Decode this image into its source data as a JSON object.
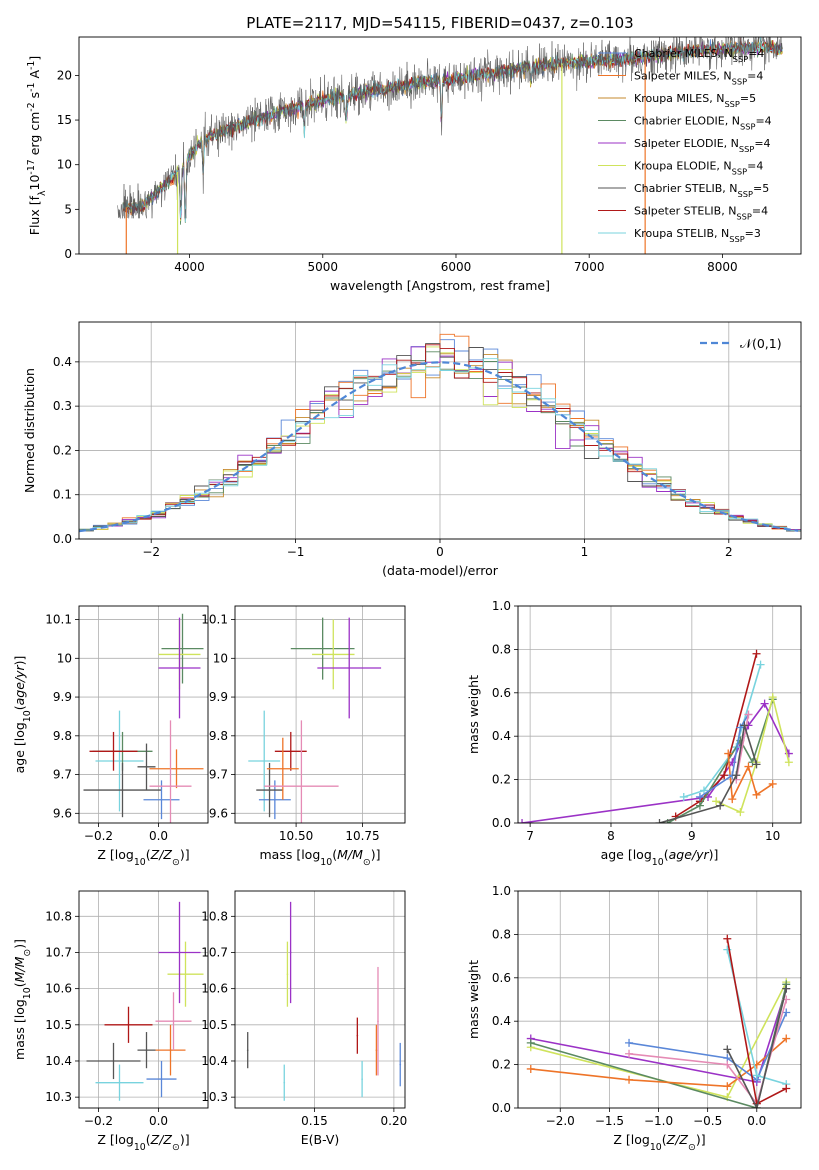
{
  "figure": {
    "title": "PLATE=2117, MJD=54115, FIBERID=0437, z=0.103"
  },
  "colors": {
    "Chabrier MILES": "#5a87d8",
    "Salpeter MILES": "#ee7428",
    "Kroupa MILES": "#c6892c",
    "Chabrier ELODIE": "#5b8a62",
    "Salpeter ELODIE": "#9b32c6",
    "Kroupa ELODIE": "#cfe35c",
    "Chabrier STELIB": "#555555",
    "Salpeter STELIB": "#b01818",
    "Kroupa STELIB": "#78d3de",
    "pink": "#e58bb5",
    "gaussian": "#4f87d6",
    "grid": "#b0b0b0"
  },
  "chart_data": [
    {
      "id": "spectrum",
      "type": "line",
      "xlabel": "wavelength [Angstrom, rest frame]",
      "ylabel": "Flux [f$_\\lambda$10$^{-17}$ erg cm$^{-2}$ s$^{-1}$ A$^{-1}$]",
      "xlim": [
        3170,
        8590
      ],
      "ylim": [
        0,
        24.3
      ],
      "xticks": [
        4000,
        5000,
        6000,
        7000,
        8000
      ],
      "yticks": [
        0,
        5,
        10,
        15,
        20
      ],
      "grid": false,
      "legend_position": "right",
      "legend": [
        {
          "label": "Chabrier MILES, N$_{SSP}$=4",
          "color_key": "Chabrier MILES"
        },
        {
          "label": "Salpeter MILES, N$_{SSP}$=4",
          "color_key": "Salpeter MILES"
        },
        {
          "label": "Kroupa MILES, N$_{SSP}$=5",
          "color_key": "Kroupa MILES"
        },
        {
          "label": "Chabrier ELODIE, N$_{SSP}$=4",
          "color_key": "Chabrier ELODIE"
        },
        {
          "label": "Salpeter ELODIE, N$_{SSP}$=4",
          "color_key": "Salpeter ELODIE"
        },
        {
          "label": "Kroupa ELODIE, N$_{SSP}$=4",
          "color_key": "Kroupa ELODIE"
        },
        {
          "label": "Chabrier STELIB, N$_{SSP}$=5",
          "color_key": "Chabrier STELIB"
        },
        {
          "label": "Salpeter STELIB, N$_{SSP}$=4",
          "color_key": "Salpeter STELIB"
        },
        {
          "label": "Kroupa STELIB, N$_{SSP}$=3",
          "color_key": "Kroupa STELIB"
        }
      ],
      "continuum": {
        "x": [
          3500,
          3650,
          3800,
          3900,
          4000,
          4100,
          4300,
          4500,
          4700,
          4900,
          5100,
          5300,
          5500,
          5700,
          5900,
          6100,
          6300,
          6500,
          6700,
          6900,
          7100,
          7300,
          7500,
          7700,
          7900,
          8100,
          8300,
          8450
        ],
        "y": [
          5.2,
          5.4,
          7.5,
          9.0,
          11.0,
          12.8,
          14.0,
          15.0,
          16.0,
          16.9,
          17.5,
          18.1,
          18.6,
          19.2,
          19.4,
          19.9,
          20.3,
          20.9,
          21.2,
          21.5,
          21.7,
          21.9,
          22.2,
          22.6,
          22.9,
          23.0,
          23.2,
          22.9
        ]
      },
      "noisy_series": "Chabrier STELIB",
      "smooth_series": "Kroupa STELIB",
      "model_cutoffs": [
        {
          "series": "Salpeter MILES",
          "from": 3200,
          "to": 3525
        },
        {
          "series": "Kroupa ELODIE",
          "from": 3200,
          "to": 3910
        },
        {
          "series": "Kroupa ELODIE",
          "from": 6795,
          "to": 8600
        },
        {
          "series": "Salpeter MILES",
          "from": 7420,
          "to": 8600
        }
      ]
    },
    {
      "id": "residuals",
      "type": "step",
      "xlabel": "(data-model)/error",
      "ylabel": "Normed distribution",
      "xlim": [
        -2.5,
        2.5
      ],
      "ylim": [
        0,
        0.49
      ],
      "xticks": [
        -2,
        -1,
        0,
        1,
        2
      ],
      "yticks": [
        0.0,
        0.1,
        0.2,
        0.3,
        0.4
      ],
      "grid": true,
      "legend_position": "top-right",
      "legend": [
        {
          "label": "$\\mathcal{N}(0,1)$",
          "color_key": "gaussian",
          "style": "dashed"
        }
      ],
      "bin_edges_start": -2.5,
      "bin_width": 0.1,
      "bins": 50,
      "series_keys": [
        "Chabrier MILES",
        "Salpeter MILES",
        "Kroupa MILES",
        "Chabrier ELODIE",
        "Salpeter ELODIE",
        "Kroupa ELODIE",
        "Chabrier STELIB",
        "Salpeter STELIB",
        "Kroupa STELIB"
      ]
    },
    {
      "id": "z-age",
      "type": "scatter",
      "xlabel": "Z [log$_{10}$($Z/Z_\\odot$)]",
      "ylabel": "age  [log$_{10}$($age/yr$)]",
      "xlim": [
        -0.265,
        0.165
      ],
      "ylim": [
        9.575,
        10.135
      ],
      "xticks": [
        -0.2,
        0.0
      ],
      "xticklabels": [
        "−0.2",
        "0.0"
      ],
      "yticks": [
        9.6,
        9.7,
        9.8,
        9.9,
        10.0,
        10.1
      ],
      "grid": true,
      "points": [
        {
          "x": -0.13,
          "y": 9.735,
          "xerr": 0.08,
          "yerr": 0.13,
          "color_key": "Kroupa STELIB"
        },
        {
          "x": -0.12,
          "y": 9.76,
          "xerr": 0.1,
          "yerr": 0.05,
          "color_key": "Chabrier ELODIE"
        },
        {
          "x": -0.15,
          "y": 9.76,
          "xerr": 0.08,
          "yerr": 0.05,
          "color_key": "Salpeter STELIB"
        },
        {
          "x": -0.12,
          "y": 9.66,
          "xerr": 0.13,
          "yerr": 0.07,
          "color_key": "Chabrier STELIB"
        },
        {
          "x": 0.01,
          "y": 9.635,
          "xerr": 0.06,
          "yerr": 0.05,
          "color_key": "Chabrier MILES"
        },
        {
          "x": -0.04,
          "y": 9.72,
          "xerr": 0.03,
          "yerr": 0.06,
          "color_key": "Chabrier STELIB"
        },
        {
          "x": 0.06,
          "y": 9.715,
          "xerr": 0.09,
          "yerr": 0.05,
          "color_key": "Salpeter MILES"
        },
        {
          "x": 0.04,
          "y": 9.67,
          "xerr": 0.07,
          "yerr": 0.17,
          "color_key": "pink"
        },
        {
          "x": 0.08,
          "y": 10.025,
          "xerr": 0.07,
          "yerr": 0.09,
          "color_key": "Chabrier ELODIE"
        },
        {
          "x": 0.07,
          "y": 10.01,
          "xerr": 0.07,
          "yerr": 0.09,
          "color_key": "Kroupa ELODIE"
        },
        {
          "x": 0.07,
          "y": 9.975,
          "xerr": 0.07,
          "yerr": 0.13,
          "color_key": "Salpeter ELODIE"
        }
      ]
    },
    {
      "id": "mass-age",
      "type": "scatter",
      "xlabel": "mass [log$_{10}$($M/M_\\odot$)]",
      "ylabel": "",
      "xlim": [
        10.27,
        10.91
      ],
      "ylim": [
        9.575,
        10.135
      ],
      "xticks": [
        10.5,
        10.75
      ],
      "xticklabels": [
        "10.50",
        "10.75"
      ],
      "yticks": [
        9.6,
        9.7,
        9.8,
        9.9,
        10.0,
        10.1
      ],
      "grid": true,
      "points": [
        {
          "x": 10.38,
          "y": 9.735,
          "xerr": 0.06,
          "yerr": 0.13,
          "color_key": "Kroupa STELIB"
        },
        {
          "x": 10.42,
          "y": 9.635,
          "xerr": 0.06,
          "yerr": 0.05,
          "color_key": "Chabrier MILES"
        },
        {
          "x": 10.4,
          "y": 9.66,
          "xerr": 0.05,
          "yerr": 0.07,
          "color_key": "Chabrier STELIB"
        },
        {
          "x": 10.48,
          "y": 9.76,
          "xerr": 0.06,
          "yerr": 0.05,
          "color_key": "Salpeter STELIB"
        },
        {
          "x": 10.45,
          "y": 9.715,
          "xerr": 0.06,
          "yerr": 0.08,
          "color_key": "Salpeter MILES"
        },
        {
          "x": 10.52,
          "y": 9.67,
          "xerr": 0.14,
          "yerr": 0.17,
          "color_key": "pink"
        },
        {
          "x": 10.6,
          "y": 10.025,
          "xerr": 0.12,
          "yerr": 0.08,
          "color_key": "Chabrier ELODIE"
        },
        {
          "x": 10.64,
          "y": 10.01,
          "xerr": 0.08,
          "yerr": 0.09,
          "color_key": "Kroupa ELODIE"
        },
        {
          "x": 10.7,
          "y": 9.975,
          "xerr": 0.12,
          "yerr": 0.13,
          "color_key": "Salpeter ELODIE"
        }
      ]
    },
    {
      "id": "age-weight",
      "type": "line",
      "xlabel": "age  [log$_{10}$($age/yr$)]",
      "ylabel": "mass weight",
      "xlim": [
        6.85,
        10.35
      ],
      "ylim": [
        0,
        1.0
      ],
      "xticks": [
        7,
        8,
        9,
        10
      ],
      "yticks": [
        0.0,
        0.2,
        0.4,
        0.6,
        0.8,
        1.0
      ],
      "grid": true,
      "series": [
        {
          "color_key": "Salpeter ELODIE",
          "x": [
            6.9,
            9.2,
            9.5,
            9.7,
            9.9,
            10.2
          ],
          "y": [
            0.0,
            0.12,
            0.28,
            0.45,
            0.55,
            0.32
          ]
        },
        {
          "color_key": "Kroupa STELIB",
          "x": [
            8.9,
            9.15,
            9.55,
            9.85
          ],
          "y": [
            0.12,
            0.15,
            0.35,
            0.73
          ]
        },
        {
          "color_key": "Salpeter STELIB",
          "x": [
            8.8,
            9.1,
            9.4,
            9.8
          ],
          "y": [
            0.03,
            0.1,
            0.22,
            0.78
          ]
        },
        {
          "color_key": "Chabrier ELODIE",
          "x": [
            8.7,
            9.1,
            9.6,
            9.75,
            10.0
          ],
          "y": [
            0.0,
            0.08,
            0.38,
            0.28,
            0.57
          ]
        },
        {
          "color_key": "Kroupa ELODIE",
          "x": [
            9.3,
            9.6,
            9.8,
            10.0,
            10.2
          ],
          "y": [
            0.1,
            0.05,
            0.28,
            0.58,
            0.28
          ]
        },
        {
          "color_key": "Salpeter MILES",
          "x": [
            9.45,
            9.5,
            9.7,
            9.8,
            10.0
          ],
          "y": [
            0.32,
            0.11,
            0.26,
            0.13,
            0.18
          ]
        },
        {
          "color_key": "Chabrier MILES",
          "x": [
            9.1,
            9.5,
            9.6,
            9.7
          ],
          "y": [
            0.12,
            0.22,
            0.44,
            0.5
          ]
        },
        {
          "color_key": "pink",
          "x": [
            9.55,
            9.7
          ],
          "y": [
            0.2,
            0.5
          ]
        },
        {
          "color_key": "Chabrier STELIB",
          "x": [
            8.6,
            9.35,
            9.55,
            9.65,
            9.8
          ],
          "y": [
            0.0,
            0.08,
            0.22,
            0.45,
            0.27
          ]
        }
      ]
    },
    {
      "id": "z-mass",
      "type": "scatter",
      "xlabel": "Z [log$_{10}$($Z/Z_\\odot$)]",
      "ylabel": "mass [log$_{10}$($M/M_\\odot$)]",
      "xlim": [
        -0.265,
        0.165
      ],
      "ylim": [
        10.27,
        10.87
      ],
      "xticks": [
        -0.2,
        0.0
      ],
      "xticklabels": [
        "−0.2",
        "0.0"
      ],
      "yticks": [
        10.3,
        10.4,
        10.5,
        10.6,
        10.7,
        10.8
      ],
      "grid": true,
      "points": [
        {
          "x": -0.13,
          "y": 10.34,
          "xerr": 0.08,
          "yerr": 0.05,
          "color_key": "Kroupa STELIB"
        },
        {
          "x": -0.15,
          "y": 10.4,
          "xerr": 0.09,
          "yerr": 0.05,
          "color_key": "Chabrier STELIB"
        },
        {
          "x": -0.1,
          "y": 10.5,
          "xerr": 0.08,
          "yerr": 0.05,
          "color_key": "Salpeter STELIB"
        },
        {
          "x": 0.01,
          "y": 10.35,
          "xerr": 0.05,
          "yerr": 0.05,
          "color_key": "Chabrier MILES"
        },
        {
          "x": -0.04,
          "y": 10.43,
          "xerr": 0.03,
          "yerr": 0.05,
          "color_key": "Chabrier STELIB"
        },
        {
          "x": 0.04,
          "y": 10.43,
          "xerr": 0.05,
          "yerr": 0.07,
          "color_key": "Salpeter MILES"
        },
        {
          "x": 0.05,
          "y": 10.51,
          "xerr": 0.06,
          "yerr": 0.08,
          "color_key": "pink"
        },
        {
          "x": 0.09,
          "y": 10.64,
          "xerr": 0.06,
          "yerr": 0.09,
          "color_key": "Kroupa ELODIE"
        },
        {
          "x": 0.07,
          "y": 10.7,
          "xerr": 0.07,
          "yerr": 0.14,
          "color_key": "Salpeter ELODIE"
        }
      ]
    },
    {
      "id": "ebv-mass",
      "type": "scatter",
      "xlabel": "E(B-V)",
      "ylabel": "",
      "xlim": [
        0.1,
        0.207
      ],
      "ylim": [
        10.27,
        10.87
      ],
      "xticks": [
        0.15,
        0.2
      ],
      "xticklabels": [
        "0.15",
        "0.20"
      ],
      "yticks": [
        10.3,
        10.4,
        10.5,
        10.6,
        10.7,
        10.8
      ],
      "grid": true,
      "points": [
        {
          "x": 0.108,
          "y": 10.43,
          "xerr": 0,
          "yerr": 0.05,
          "color_key": "Chabrier STELIB"
        },
        {
          "x": 0.131,
          "y": 10.34,
          "xerr": 0,
          "yerr": 0.05,
          "color_key": "Kroupa STELIB"
        },
        {
          "x": 0.133,
          "y": 10.64,
          "xerr": 0,
          "yerr": 0.09,
          "color_key": "Kroupa ELODIE"
        },
        {
          "x": 0.135,
          "y": 10.7,
          "xerr": 0,
          "yerr": 0.14,
          "color_key": "Salpeter ELODIE"
        },
        {
          "x": 0.177,
          "y": 10.47,
          "xerr": 0,
          "yerr": 0.05,
          "color_key": "Salpeter STELIB"
        },
        {
          "x": 0.18,
          "y": 10.35,
          "xerr": 0,
          "yerr": 0.05,
          "color_key": "Kroupa STELIB"
        },
        {
          "x": 0.189,
          "y": 10.43,
          "xerr": 0,
          "yerr": 0.07,
          "color_key": "Salpeter MILES"
        },
        {
          "x": 0.19,
          "y": 10.51,
          "xerr": 0,
          "yerr": 0.15,
          "color_key": "pink"
        },
        {
          "x": 0.204,
          "y": 10.39,
          "xerr": 0,
          "yerr": 0.06,
          "color_key": "Chabrier MILES"
        }
      ]
    },
    {
      "id": "z-weight",
      "type": "line",
      "xlabel": "Z [log$_{10}$($Z/Z_\\odot$)]",
      "ylabel": "mass weight",
      "xlim": [
        -2.43,
        0.45
      ],
      "ylim": [
        0,
        1.0
      ],
      "xticks": [
        -2.0,
        -1.5,
        -1.0,
        -0.5,
        0.0
      ],
      "xticklabels": [
        "−2.0",
        "−1.5",
        "−1.0",
        "−0.5",
        "0.0"
      ],
      "yticks": [
        0.0,
        0.2,
        0.4,
        0.6,
        0.8,
        1.0
      ],
      "grid": true,
      "series": [
        {
          "color_key": "Salpeter ELODIE",
          "x": [
            -2.3,
            0.0,
            0.3
          ],
          "y": [
            0.32,
            0.12,
            0.55
          ]
        },
        {
          "color_key": "Kroupa ELODIE",
          "x": [
            -2.3,
            -0.3,
            0.3
          ],
          "y": [
            0.28,
            0.05,
            0.58
          ]
        },
        {
          "color_key": "Chabrier ELODIE",
          "x": [
            -2.3,
            0.0,
            0.3
          ],
          "y": [
            0.3,
            0.0,
            0.57
          ]
        },
        {
          "color_key": "Salpeter MILES",
          "x": [
            -2.3,
            -1.3,
            -0.3,
            0.0,
            0.3
          ],
          "y": [
            0.18,
            0.13,
            0.1,
            0.2,
            0.32
          ]
        },
        {
          "color_key": "Chabrier MILES",
          "x": [
            -1.3,
            -0.3,
            0.0,
            0.3
          ],
          "y": [
            0.3,
            0.23,
            0.13,
            0.44
          ]
        },
        {
          "color_key": "pink",
          "x": [
            -1.3,
            -0.3,
            0.0,
            0.3
          ],
          "y": [
            0.25,
            0.2,
            0.02,
            0.5
          ]
        },
        {
          "color_key": "Kroupa STELIB",
          "x": [
            -0.3,
            0.0,
            0.3
          ],
          "y": [
            0.73,
            0.15,
            0.11
          ]
        },
        {
          "color_key": "Salpeter STELIB",
          "x": [
            -0.3,
            0.0,
            0.3
          ],
          "y": [
            0.78,
            0.02,
            0.09
          ]
        },
        {
          "color_key": "Chabrier STELIB",
          "x": [
            -0.3,
            0.0,
            0.3
          ],
          "y": [
            0.27,
            0.0,
            0.55
          ]
        }
      ]
    }
  ]
}
